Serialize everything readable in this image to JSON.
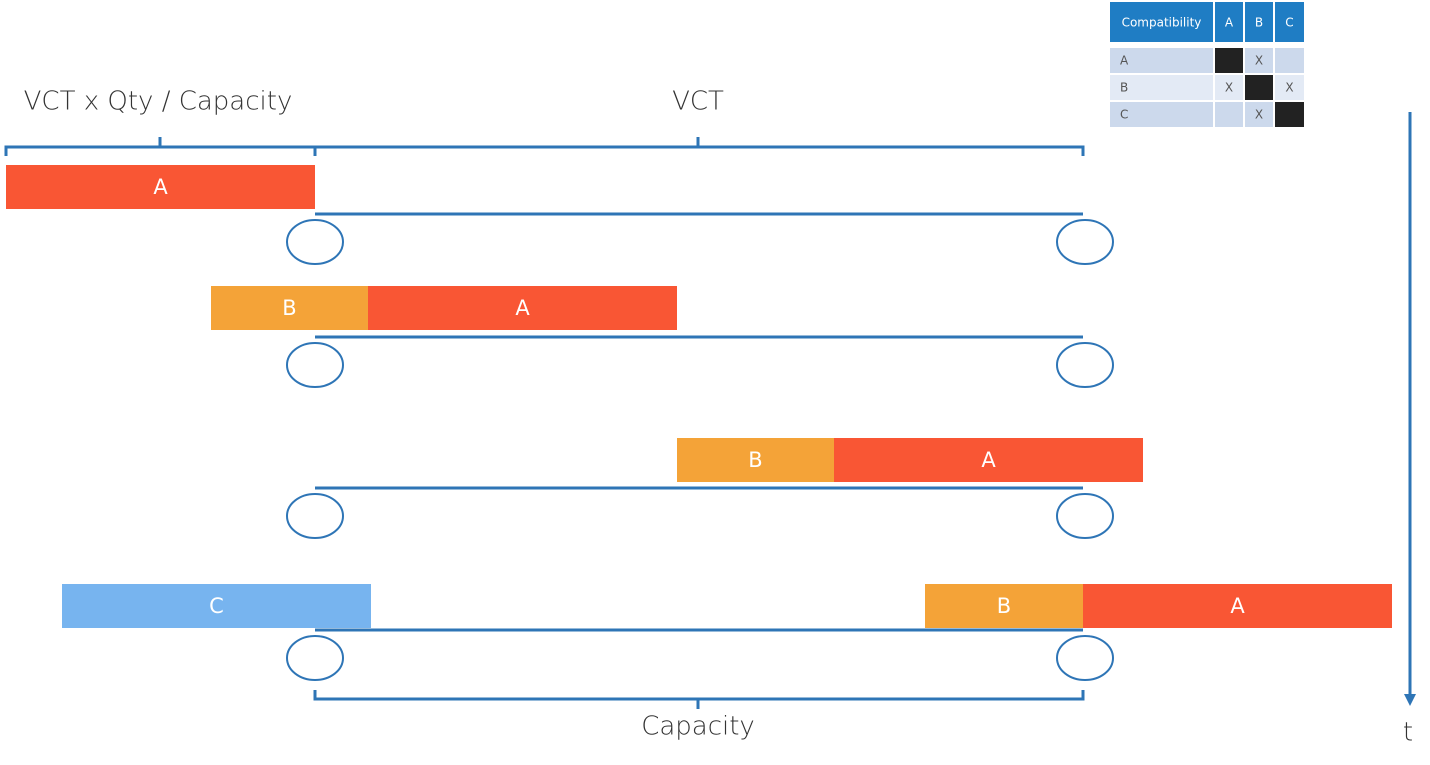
{
  "labels": {
    "top_left": "VCT x Qty / Capacity",
    "top_center": "VCT",
    "bottom": "Capacity",
    "time_axis": "t"
  },
  "compatibility_table": {
    "header": [
      "Compatibility",
      "A",
      "B",
      "C"
    ],
    "rows": [
      [
        "A",
        null,
        "X",
        null
      ],
      [
        "B",
        "X",
        null,
        "X"
      ],
      [
        "C",
        null,
        "X",
        null
      ]
    ]
  },
  "lanes": [
    {
      "blocks": [
        {
          "label": "A"
        }
      ]
    },
    {
      "blocks": [
        {
          "label": "B"
        },
        {
          "label": "A"
        }
      ]
    },
    {
      "blocks": [
        {
          "label": "B"
        },
        {
          "label": "A"
        }
      ]
    },
    {
      "blocks": [
        {
          "label": "C"
        },
        {
          "label": "B"
        },
        {
          "label": "A"
        }
      ]
    }
  ]
}
